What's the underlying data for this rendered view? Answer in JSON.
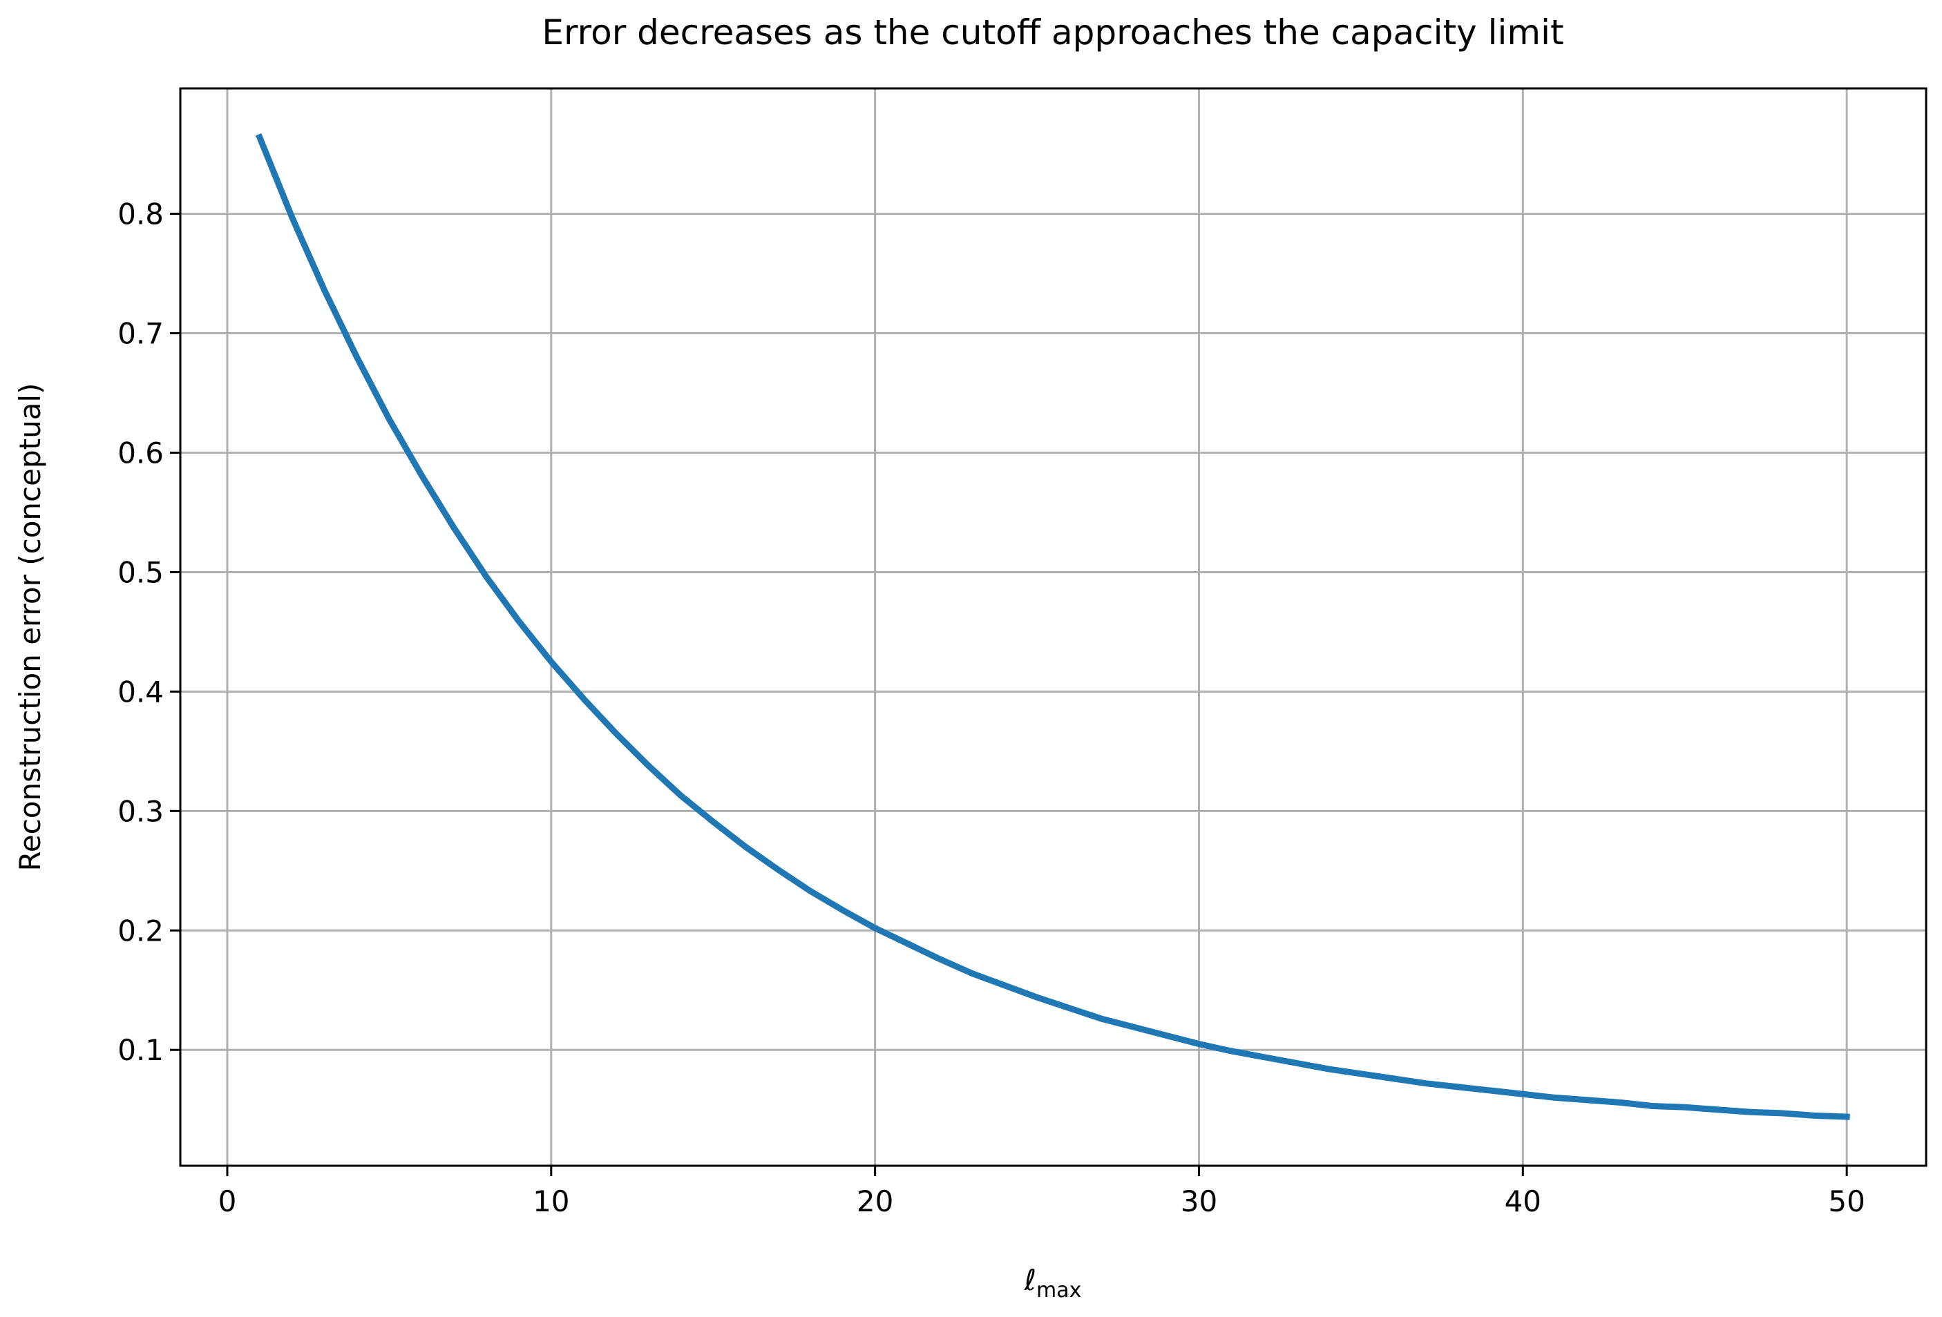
{
  "chart_data": {
    "type": "line",
    "title": "Error decreases as the cutoff approaches the capacity limit",
    "x_label": "ℓmax",
    "y_label": "Reconstruction error (conceptual)",
    "x": [
      1,
      2,
      3,
      4,
      5,
      6,
      7,
      8,
      9,
      10,
      11,
      12,
      13,
      14,
      15,
      16,
      17,
      18,
      19,
      20,
      21,
      22,
      23,
      24,
      25,
      26,
      27,
      28,
      29,
      30,
      31,
      32,
      33,
      34,
      35,
      36,
      37,
      38,
      39,
      40,
      41,
      42,
      43,
      44,
      45,
      46,
      47,
      48,
      49,
      50
    ],
    "series": [
      {
        "color": "#1f77b4",
        "values": [
          0.864,
          0.797,
          0.736,
          0.68,
          0.628,
          0.581,
          0.537,
          0.496,
          0.459,
          0.425,
          0.394,
          0.365,
          0.338,
          0.313,
          0.291,
          0.27,
          0.251,
          0.233,
          0.217,
          0.202,
          0.189,
          0.176,
          0.164,
          0.154,
          0.144,
          0.135,
          0.126,
          0.119,
          0.112,
          0.105,
          0.099,
          0.094,
          0.089,
          0.084,
          0.08,
          0.076,
          0.072,
          0.069,
          0.066,
          0.063,
          0.06,
          0.058,
          0.056,
          0.053,
          0.052,
          0.05,
          0.048,
          0.047,
          0.045,
          0.044
        ]
      }
    ],
    "xlim": [
      -1.45,
      52.45
    ],
    "ylim": [
      0.003,
      0.905
    ],
    "xticks": [
      0,
      10,
      20,
      30,
      40,
      50
    ],
    "yticks": [
      0.1,
      0.2,
      0.3,
      0.4,
      0.5,
      0.6,
      0.7,
      0.8
    ],
    "grid": true
  }
}
